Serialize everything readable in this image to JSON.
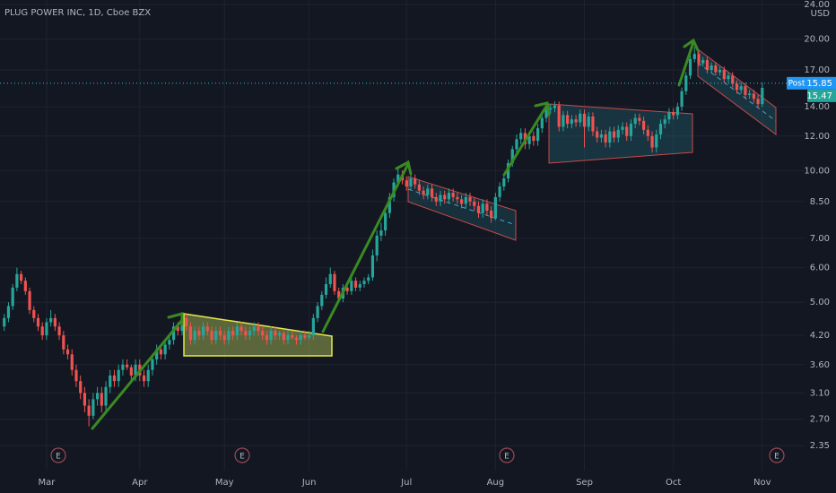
{
  "chart_data": {
    "type": "candlestick",
    "title": "PLUG POWER INC, 1D, Cboe BZX",
    "currency": "USD",
    "log_scale": true,
    "grid": true,
    "up_color": "#26a69a",
    "down_color": "#ef5350",
    "ylim": [
      2.06,
      24.57
    ],
    "yticks": [
      2.35,
      {
        "value": 2.7,
        "label": "2.70"
      },
      {
        "value": 3.1,
        "label": "3.10"
      },
      {
        "value": 3.6,
        "label": "3.60"
      },
      {
        "value": 4.2,
        "label": "4.20"
      },
      {
        "value": 5,
        "label": "5.00"
      },
      {
        "value": 6,
        "label": "6.00"
      },
      {
        "value": 7,
        "label": "7.00"
      },
      {
        "value": 8.5,
        "label": "8.50"
      },
      {
        "value": 10,
        "label": "10.00"
      },
      {
        "value": 12,
        "label": "12.00"
      },
      {
        "value": 14,
        "label": "14.00"
      },
      {
        "value": 17,
        "label": "17.00"
      },
      {
        "value": 20,
        "label": "20.00"
      },
      {
        "value": 24,
        "label": "24.00"
      }
    ],
    "xlim": [
      -1,
      189
    ],
    "xticks": [
      {
        "value": 10,
        "label": "Mar"
      },
      {
        "value": 32,
        "label": "Apr"
      },
      {
        "value": 52,
        "label": "May"
      },
      {
        "value": 72,
        "label": "Jun"
      },
      {
        "value": 95,
        "label": "Jul"
      },
      {
        "value": 116,
        "label": "Aug"
      },
      {
        "value": 137,
        "label": "Sep"
      },
      {
        "value": 158,
        "label": "Oct"
      },
      {
        "value": 179,
        "label": "Nov"
      }
    ],
    "post_label": "Post",
    "post_price": 15.85,
    "events": [
      "E",
      "E",
      "E",
      "E"
    ],
    "candles": [
      [
        4.4,
        4.7,
        4.3,
        4.6
      ],
      [
        4.6,
        5.0,
        4.5,
        4.9
      ],
      [
        4.9,
        5.5,
        4.8,
        5.4
      ],
      [
        5.4,
        6.0,
        5.3,
        5.8
      ],
      [
        5.8,
        5.9,
        5.5,
        5.6
      ],
      [
        5.6,
        5.7,
        5.2,
        5.3
      ],
      [
        5.3,
        5.4,
        4.7,
        4.8
      ],
      [
        4.8,
        4.9,
        4.5,
        4.6
      ],
      [
        4.6,
        4.7,
        4.3,
        4.4
      ],
      [
        4.4,
        4.5,
        4.1,
        4.2
      ],
      [
        4.2,
        4.6,
        4.1,
        4.5
      ],
      [
        4.5,
        4.8,
        4.4,
        4.6
      ],
      [
        4.6,
        4.7,
        4.3,
        4.4
      ],
      [
        4.4,
        4.5,
        4.1,
        4.2
      ],
      [
        4.2,
        4.3,
        3.8,
        3.9
      ],
      [
        3.9,
        4.0,
        3.7,
        3.8
      ],
      [
        3.8,
        3.9,
        3.4,
        3.5
      ],
      [
        3.5,
        3.6,
        3.2,
        3.3
      ],
      [
        3.3,
        3.4,
        3.0,
        3.1
      ],
      [
        3.1,
        3.2,
        2.8,
        2.9
      ],
      [
        2.9,
        3.0,
        2.6,
        2.75
      ],
      [
        2.75,
        3.1,
        2.7,
        3.0
      ],
      [
        3.0,
        3.2,
        2.9,
        3.1
      ],
      [
        3.1,
        3.2,
        2.8,
        2.9
      ],
      [
        2.9,
        3.3,
        2.8,
        3.2
      ],
      [
        3.2,
        3.5,
        3.1,
        3.4
      ],
      [
        3.4,
        3.5,
        3.2,
        3.3
      ],
      [
        3.3,
        3.6,
        3.2,
        3.5
      ],
      [
        3.5,
        3.7,
        3.4,
        3.6
      ],
      [
        3.6,
        3.7,
        3.5,
        3.55
      ],
      [
        3.55,
        3.6,
        3.3,
        3.4
      ],
      [
        3.4,
        3.7,
        3.3,
        3.6
      ],
      [
        3.6,
        3.7,
        3.3,
        3.4
      ],
      [
        3.4,
        3.5,
        3.2,
        3.3
      ],
      [
        3.3,
        3.6,
        3.2,
        3.5
      ],
      [
        3.5,
        3.8,
        3.4,
        3.7
      ],
      [
        3.7,
        4.0,
        3.6,
        3.9
      ],
      [
        3.9,
        4.0,
        3.7,
        3.8
      ],
      [
        3.8,
        4.1,
        3.7,
        4.0
      ],
      [
        4.0,
        4.2,
        3.9,
        4.1
      ],
      [
        4.1,
        4.5,
        4.0,
        4.4
      ],
      [
        4.4,
        4.5,
        4.2,
        4.3
      ],
      [
        4.3,
        4.7,
        4.2,
        4.6
      ],
      [
        4.6,
        4.7,
        4.3,
        4.4
      ],
      [
        4.4,
        4.5,
        4.0,
        4.1
      ],
      [
        4.1,
        4.4,
        4.0,
        4.3
      ],
      [
        4.3,
        4.4,
        4.1,
        4.2
      ],
      [
        4.2,
        4.5,
        4.1,
        4.4
      ],
      [
        4.4,
        4.5,
        4.2,
        4.3
      ],
      [
        4.3,
        4.4,
        4.0,
        4.1
      ],
      [
        4.1,
        4.4,
        4.0,
        4.3
      ],
      [
        4.3,
        4.4,
        4.1,
        4.2
      ],
      [
        4.2,
        4.3,
        4.0,
        4.1
      ],
      [
        4.1,
        4.4,
        4.0,
        4.3
      ],
      [
        4.3,
        4.4,
        4.1,
        4.2
      ],
      [
        4.2,
        4.5,
        4.1,
        4.4
      ],
      [
        4.4,
        4.5,
        4.2,
        4.3
      ],
      [
        4.3,
        4.4,
        4.1,
        4.2
      ],
      [
        4.2,
        4.4,
        4.1,
        4.3
      ],
      [
        4.3,
        4.5,
        4.2,
        4.4
      ],
      [
        4.4,
        4.5,
        4.2,
        4.3
      ],
      [
        4.3,
        4.4,
        4.1,
        4.2
      ],
      [
        4.2,
        4.3,
        4.0,
        4.1
      ],
      [
        4.1,
        4.4,
        4.0,
        4.3
      ],
      [
        4.3,
        4.4,
        4.1,
        4.2
      ],
      [
        4.2,
        4.3,
        4.1,
        4.25
      ],
      [
        4.25,
        4.3,
        4.0,
        4.1
      ],
      [
        4.1,
        4.3,
        4.0,
        4.2
      ],
      [
        4.2,
        4.3,
        4.1,
        4.15
      ],
      [
        4.15,
        4.2,
        4.0,
        4.1
      ],
      [
        4.1,
        4.3,
        4.0,
        4.2
      ],
      [
        4.2,
        4.3,
        4.1,
        4.15
      ],
      [
        4.15,
        4.3,
        4.1,
        4.2
      ],
      [
        4.2,
        4.7,
        4.1,
        4.6
      ],
      [
        4.6,
        5.0,
        4.5,
        4.9
      ],
      [
        4.9,
        5.3,
        4.8,
        5.2
      ],
      [
        5.2,
        5.7,
        5.1,
        5.5
      ],
      [
        5.5,
        6.0,
        5.4,
        5.8
      ],
      [
        5.8,
        5.9,
        5.2,
        5.3
      ],
      [
        5.3,
        5.4,
        5.0,
        5.1
      ],
      [
        5.1,
        5.5,
        5.0,
        5.4
      ],
      [
        5.4,
        5.5,
        5.2,
        5.3
      ],
      [
        5.3,
        5.7,
        5.2,
        5.6
      ],
      [
        5.6,
        5.7,
        5.3,
        5.4
      ],
      [
        5.4,
        5.6,
        5.3,
        5.5
      ],
      [
        5.5,
        5.7,
        5.4,
        5.6
      ],
      [
        5.6,
        5.8,
        5.5,
        5.7
      ],
      [
        5.7,
        6.6,
        5.6,
        6.4
      ],
      [
        6.4,
        7.3,
        6.2,
        7.1
      ],
      [
        7.1,
        7.6,
        6.9,
        7.3
      ],
      [
        7.3,
        8.2,
        7.1,
        8.0
      ],
      [
        8.0,
        8.9,
        7.8,
        8.7
      ],
      [
        8.7,
        9.6,
        8.5,
        9.4
      ],
      [
        9.4,
        10.1,
        9.2,
        9.8
      ],
      [
        9.8,
        10.0,
        9.3,
        9.5
      ],
      [
        9.5,
        9.7,
        9.0,
        9.2
      ],
      [
        9.2,
        9.8,
        9.0,
        9.6
      ],
      [
        9.6,
        9.8,
        9.1,
        9.3
      ],
      [
        9.3,
        9.5,
        8.8,
        9.0
      ],
      [
        9.0,
        9.2,
        8.6,
        8.8
      ],
      [
        8.8,
        9.3,
        8.6,
        9.1
      ],
      [
        9.1,
        9.3,
        8.5,
        8.7
      ],
      [
        8.7,
        8.9,
        8.3,
        8.5
      ],
      [
        8.5,
        9.0,
        8.3,
        8.8
      ],
      [
        8.8,
        9.0,
        8.4,
        8.6
      ],
      [
        8.6,
        9.1,
        8.4,
        8.9
      ],
      [
        8.9,
        9.1,
        8.5,
        8.7
      ],
      [
        8.7,
        8.9,
        8.4,
        8.6
      ],
      [
        8.6,
        8.8,
        8.2,
        8.4
      ],
      [
        8.4,
        8.9,
        8.2,
        8.7
      ],
      [
        8.7,
        8.9,
        8.3,
        8.5
      ],
      [
        8.5,
        8.7,
        8.1,
        8.3
      ],
      [
        8.3,
        8.5,
        7.8,
        8.0
      ],
      [
        8.0,
        8.6,
        7.8,
        8.4
      ],
      [
        8.4,
        8.6,
        7.9,
        8.1
      ],
      [
        8.1,
        8.3,
        7.6,
        7.8
      ],
      [
        7.8,
        8.9,
        7.7,
        8.7
      ],
      [
        8.7,
        9.4,
        8.5,
        9.2
      ],
      [
        9.2,
        9.8,
        9.0,
        9.6
      ],
      [
        9.6,
        10.6,
        9.4,
        10.4
      ],
      [
        10.4,
        11.4,
        10.2,
        11.2
      ],
      [
        11.2,
        12.1,
        11.0,
        11.8
      ],
      [
        11.8,
        12.5,
        11.5,
        12.2
      ],
      [
        12.2,
        12.5,
        11.2,
        11.5
      ],
      [
        11.5,
        12.3,
        11.2,
        12.0
      ],
      [
        12.0,
        12.3,
        11.4,
        11.7
      ],
      [
        11.7,
        12.8,
        11.4,
        12.5
      ],
      [
        12.5,
        13.5,
        12.2,
        13.2
      ],
      [
        13.2,
        14.1,
        12.9,
        13.8
      ],
      [
        13.8,
        14.2,
        13.5,
        13.9
      ],
      [
        13.9,
        14.4,
        13.6,
        14.1
      ],
      [
        14.1,
        14.4,
        12.3,
        12.6
      ],
      [
        12.6,
        13.7,
        12.3,
        13.4
      ],
      [
        13.4,
        13.7,
        12.5,
        12.8
      ],
      [
        12.8,
        13.4,
        12.5,
        13.1
      ],
      [
        13.1,
        13.4,
        12.6,
        12.9
      ],
      [
        12.9,
        13.8,
        12.6,
        13.5
      ],
      [
        13.5,
        13.8,
        11.3,
        12.6
      ],
      [
        12.6,
        13.6,
        12.3,
        13.3
      ],
      [
        13.3,
        13.6,
        12.0,
        12.3
      ],
      [
        12.3,
        12.6,
        11.6,
        11.9
      ],
      [
        11.9,
        12.4,
        11.6,
        12.1
      ],
      [
        12.1,
        12.4,
        11.3,
        11.6
      ],
      [
        11.6,
        12.6,
        11.3,
        12.3
      ],
      [
        12.3,
        12.6,
        11.6,
        11.9
      ],
      [
        11.9,
        12.7,
        11.6,
        12.4
      ],
      [
        12.4,
        12.9,
        12.1,
        12.6
      ],
      [
        12.6,
        12.9,
        11.7,
        12.0
      ],
      [
        12.0,
        13.1,
        11.7,
        12.8
      ],
      [
        12.8,
        13.5,
        12.5,
        13.2
      ],
      [
        13.2,
        13.5,
        12.7,
        13.0
      ],
      [
        13.0,
        13.3,
        12.1,
        12.4
      ],
      [
        12.4,
        12.7,
        11.7,
        12.0
      ],
      [
        12.0,
        12.3,
        11.0,
        11.3
      ],
      [
        11.3,
        12.4,
        11.0,
        12.1
      ],
      [
        12.1,
        13.1,
        11.8,
        12.8
      ],
      [
        12.8,
        13.4,
        12.5,
        13.1
      ],
      [
        13.1,
        13.9,
        12.8,
        13.6
      ],
      [
        13.6,
        13.9,
        13.1,
        13.4
      ],
      [
        13.4,
        14.3,
        13.1,
        14.0
      ],
      [
        14.0,
        15.5,
        13.7,
        15.2
      ],
      [
        15.2,
        16.8,
        14.9,
        16.5
      ],
      [
        16.5,
        18.8,
        16.2,
        18.0
      ],
      [
        18.0,
        19.2,
        17.7,
        18.5
      ],
      [
        18.5,
        18.8,
        17.3,
        17.6
      ],
      [
        17.6,
        18.2,
        17.3,
        17.9
      ],
      [
        17.9,
        18.2,
        16.7,
        17.0
      ],
      [
        17.0,
        17.7,
        16.7,
        17.4
      ],
      [
        17.4,
        17.7,
        16.5,
        16.8
      ],
      [
        16.8,
        17.3,
        16.5,
        17.0
      ],
      [
        17.0,
        17.3,
        15.9,
        16.2
      ],
      [
        16.2,
        16.8,
        15.9,
        16.5
      ],
      [
        16.5,
        16.8,
        15.5,
        15.8
      ],
      [
        15.8,
        16.1,
        15.0,
        15.3
      ],
      [
        15.3,
        15.9,
        15.0,
        15.6
      ],
      [
        15.6,
        15.9,
        14.6,
        14.9
      ],
      [
        14.9,
        15.3,
        14.6,
        15.0
      ],
      [
        15.0,
        15.3,
        14.3,
        14.6
      ],
      [
        14.6,
        14.9,
        13.9,
        14.2
      ],
      [
        14.2,
        15.9,
        14.0,
        15.47
      ]
    ]
  }
}
